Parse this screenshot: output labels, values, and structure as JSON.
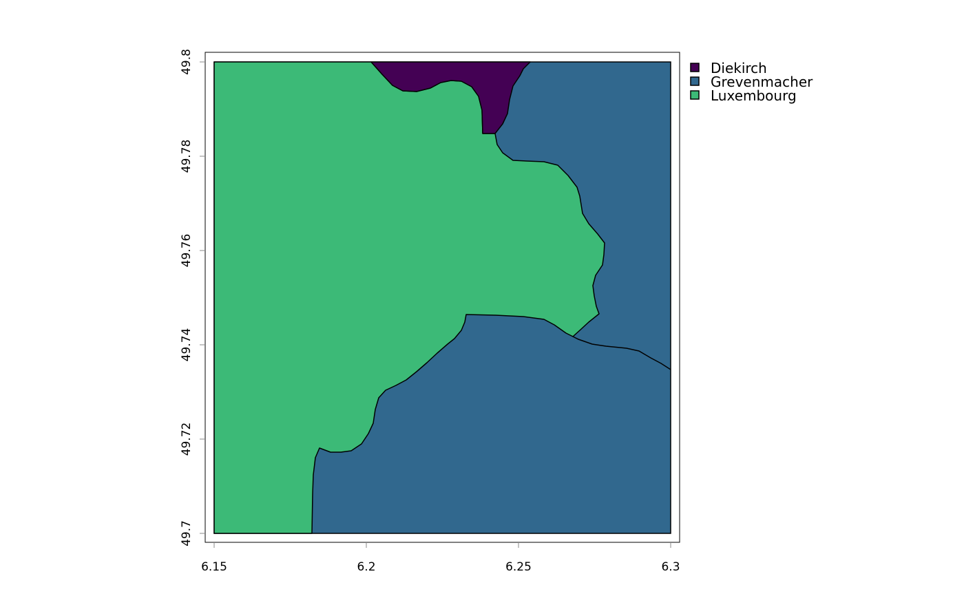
{
  "map": {
    "x_ticks": [
      "6.15",
      "6.2",
      "6.25",
      "6.3"
    ],
    "y_ticks": [
      "49.7",
      "49.72",
      "49.74",
      "49.76",
      "49.78",
      "49.8"
    ],
    "x_range": [
      6.15,
      6.3
    ],
    "y_range": [
      49.7,
      49.8
    ],
    "legend": [
      {
        "label": "Diekirch",
        "color": "#440154"
      },
      {
        "label": "Grevenmacher",
        "color": "#31688E"
      },
      {
        "label": "Luxembourg",
        "color": "#3CBA77"
      }
    ],
    "legend_position": "right",
    "border_color": "#000000"
  }
}
